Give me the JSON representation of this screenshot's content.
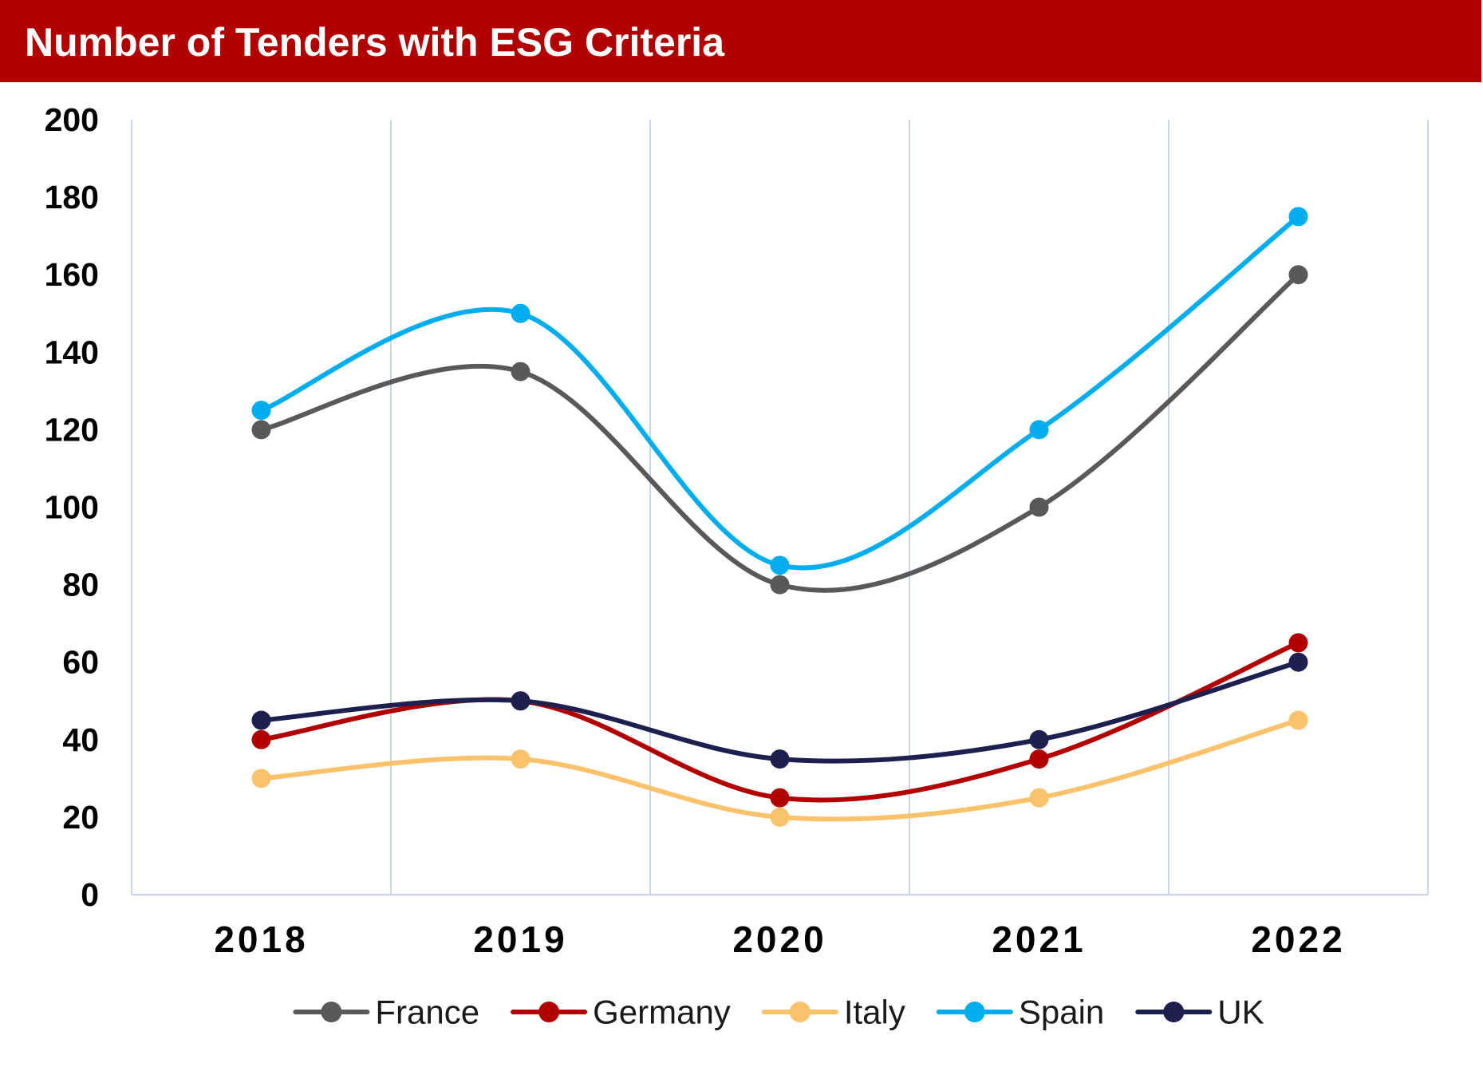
{
  "chart_data": {
    "type": "line",
    "title": "Number of Tenders with ESG Criteria",
    "xlabel": "",
    "ylabel": "",
    "categories": [
      "2018",
      "2019",
      "2020",
      "2021",
      "2022"
    ],
    "ylim": [
      0,
      200
    ],
    "yticks": [
      0,
      20,
      40,
      60,
      80,
      100,
      120,
      140,
      160,
      180,
      200
    ],
    "grid": "vertical",
    "legend": "bottom",
    "smooth": true,
    "series": [
      {
        "name": "France",
        "color": "#595959",
        "values": [
          120,
          135,
          80,
          100,
          160
        ]
      },
      {
        "name": "Germany",
        "color": "#b20000",
        "values": [
          40,
          50,
          25,
          35,
          65
        ]
      },
      {
        "name": "Italy",
        "color": "#fac26b",
        "values": [
          30,
          35,
          20,
          25,
          45
        ]
      },
      {
        "name": "Spain",
        "color": "#00aeef",
        "values": [
          125,
          150,
          85,
          120,
          175
        ]
      },
      {
        "name": "UK",
        "color": "#1d1f4e",
        "values": [
          45,
          50,
          35,
          40,
          60
        ]
      }
    ]
  },
  "colors": {
    "title_bar": "#b20000",
    "gridline": "#cdd5e8"
  }
}
